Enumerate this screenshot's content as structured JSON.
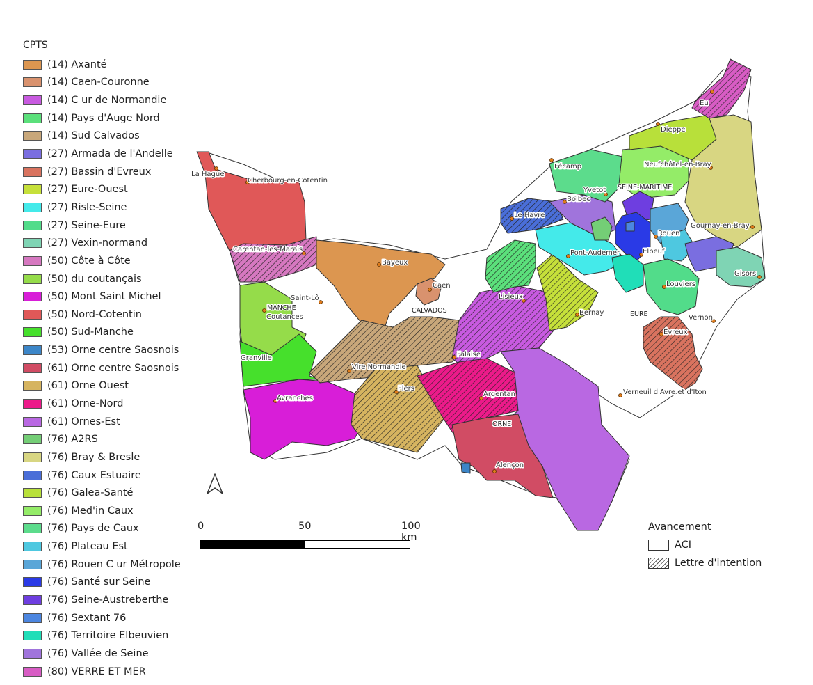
{
  "legend": {
    "title": "CPTS",
    "items": [
      {
        "label": "(14) Axanté",
        "color": "#dc9650"
      },
      {
        "label": "(14) Caen-Couronne",
        "color": "#d9926e"
      },
      {
        "label": "(14) C ur de Normandie",
        "color": "#c85ae0"
      },
      {
        "label": "(14) Pays d'Auge Nord",
        "color": "#5be07b"
      },
      {
        "label": "(14) Sud Calvados",
        "color": "#c8a77a"
      },
      {
        "label": "(27) Armada de l'Andelle",
        "color": "#7a6ee0"
      },
      {
        "label": "(27) Bassin d'Evreux",
        "color": "#d9735f"
      },
      {
        "label": "(27) Eure-Ouest",
        "color": "#c6e03a"
      },
      {
        "label": "(27) Risle-Seine",
        "color": "#44eaea"
      },
      {
        "label": "(27) Seine-Eure",
        "color": "#52dc8a"
      },
      {
        "label": "(27) Vexin-normand",
        "color": "#7fd4b4"
      },
      {
        "label": "(50) Côte à Côte",
        "color": "#d678c0"
      },
      {
        "label": "(50) du coutançais",
        "color": "#95dc4a"
      },
      {
        "label": "(50) Mont Saint Michel",
        "color": "#d81ed8"
      },
      {
        "label": "(50) Nord-Cotentin",
        "color": "#e05858"
      },
      {
        "label": "(50) Sud-Manche",
        "color": "#46e02c"
      },
      {
        "label": "(53) Orne centre Saosnois",
        "color": "#3c86c8"
      },
      {
        "label": "(61) Orne centre Saosnois",
        "color": "#d14c64"
      },
      {
        "label": "(61) Orne Ouest",
        "color": "#d6b460"
      },
      {
        "label": "(61) Orne-Nord",
        "color": "#ec1a8a"
      },
      {
        "label": "(61) Ornes-Est",
        "color": "#b968e2"
      },
      {
        "label": "(76) A2RS",
        "color": "#74ce76"
      },
      {
        "label": "(76) Bray & Bresle",
        "color": "#d8d682"
      },
      {
        "label": "(76) Caux Estuaire",
        "color": "#4a6ed8"
      },
      {
        "label": "(76) Galea-Santé",
        "color": "#b8e03a"
      },
      {
        "label": "(76) Med'in Caux",
        "color": "#94ec68"
      },
      {
        "label": "(76) Pays de Caux",
        "color": "#5cdc8c"
      },
      {
        "label": "(76) Plateau Est",
        "color": "#4ec8e0"
      },
      {
        "label": "(76) Rouen C ur Métropole",
        "color": "#5aa6d8"
      },
      {
        "label": "(76) Santé sur Seine",
        "color": "#2a3ae6"
      },
      {
        "label": "(76) Seine-Austreberthe",
        "color": "#6e3ee0"
      },
      {
        "label": "(76) Sextant 76",
        "color": "#4c86e0"
      },
      {
        "label": "(76) Territoire Elbeuvien",
        "color": "#20deb8"
      },
      {
        "label": "(76) Vallée de Seine",
        "color": "#a074dc"
      },
      {
        "label": "(80) VERRE ET MER",
        "color": "#d85cc4"
      }
    ]
  },
  "status_legend": {
    "title": "Avancement",
    "aci": "ACI",
    "letter": "Lettre d'intention"
  },
  "scale": {
    "tick0": "0",
    "tick50": "50",
    "tick100": "100 km"
  },
  "north_arrow_icon": "north-arrow-icon",
  "map": {
    "departments": {
      "seine_maritime": "SEINE-MARITIME",
      "manche": "MANCHE",
      "calvados": "CALVADOS",
      "eure": "EURE",
      "orne": "ORNE"
    },
    "cities": {
      "la_hague": "La Hague",
      "cherbourg": "Cherbourg-en-Cotentin",
      "carentan": "Carentan-les-Marais",
      "saint_lo": "Saint-Lô",
      "coutances": "Coutances",
      "granville": "Granville",
      "avranches": "Avranches",
      "bayeux": "Bayeux",
      "caen": "Caen",
      "vire": "Vire Normandie",
      "flers": "Flers",
      "falaise": "Falaise",
      "lisieux": "Lisieux",
      "argentan": "Argentan",
      "alencon": "Alençon",
      "le_havre": "Le Havre",
      "fecamp": "Fécamp",
      "bolbec": "Bolbec",
      "yvetot": "Yvetot",
      "dieppe": "Dieppe",
      "eu": "Eu",
      "neufchatel": "Neufchâtel-en-Bray",
      "gournay": "Gournay-en-Bray",
      "rouen": "Rouen",
      "pont_audemer": "Pont-Audemer",
      "elbeuf": "Elbeuf",
      "louviers": "Louviers",
      "gisors": "Gisors",
      "bernay": "Bernay",
      "vernon": "Vernon",
      "evreux": "Évreux",
      "verneuil": "Verneuil d'Avre et d'Iton"
    }
  }
}
